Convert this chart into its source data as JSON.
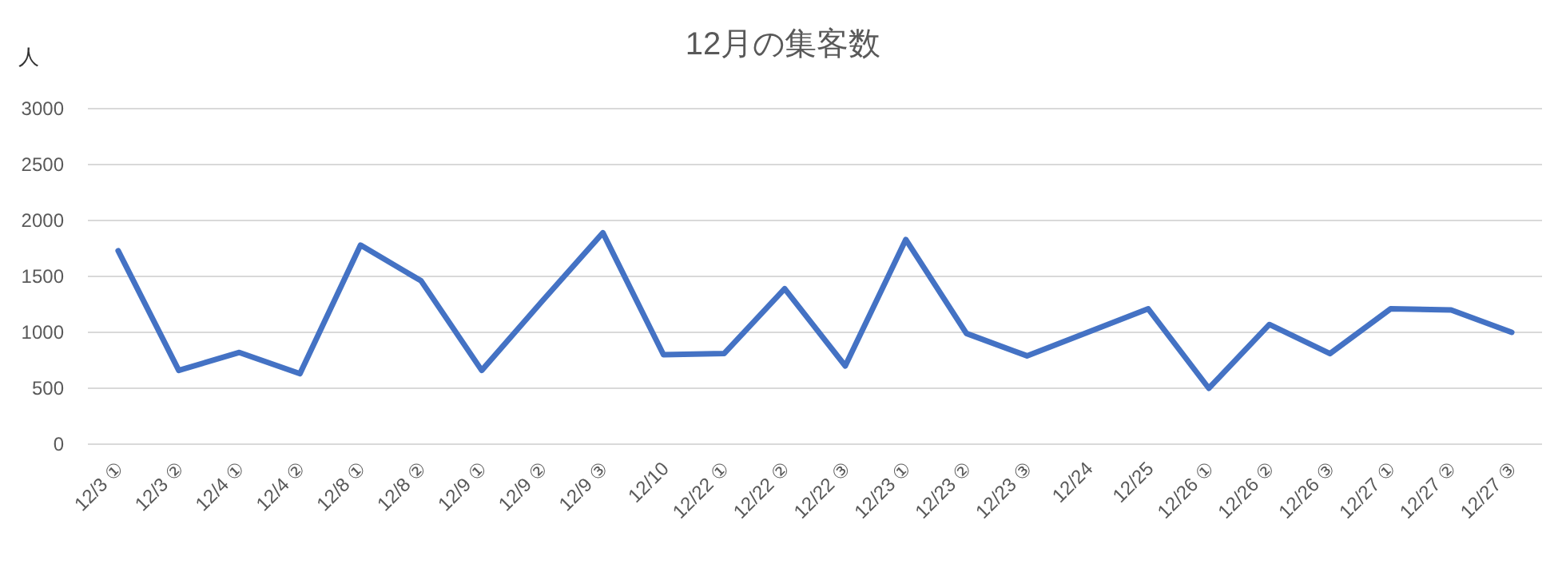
{
  "chart_data": {
    "type": "line",
    "title": "12月の集客数",
    "ylabel": "人",
    "categories": [
      "12/3 ①",
      "12/3 ②",
      "12/4 ①",
      "12/4 ②",
      "12/8 ①",
      "12/8 ②",
      "12/9 ①",
      "12/9 ②",
      "12/9 ③",
      "12/10",
      "12/22 ①",
      "12/22 ②",
      "12/22 ③",
      "12/23 ①",
      "12/23 ②",
      "12/23 ③",
      "12/24",
      "12/25",
      "12/26 ①",
      "12/26 ②",
      "12/26 ③",
      "12/27 ①",
      "12/27 ②",
      "12/27 ③"
    ],
    "series": [
      {
        "color": "#4472c4",
        "values": [
          1730,
          660,
          820,
          630,
          1780,
          1460,
          660,
          1280,
          1890,
          800,
          810,
          1390,
          700,
          1830,
          990,
          790,
          1000,
          1210,
          500,
          1070,
          810,
          1210,
          1200,
          1000
        ]
      }
    ],
    "ylim": [
      0,
      3000
    ],
    "yticks": [
      0,
      500,
      1000,
      1500,
      2000,
      2500,
      3000
    ],
    "grid": "y"
  }
}
